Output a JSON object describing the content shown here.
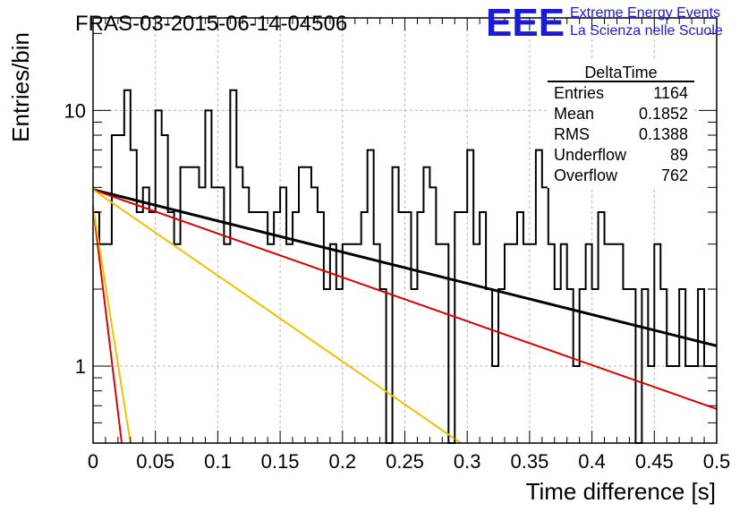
{
  "chart_data": {
    "type": "line",
    "title": "FRAS-03-2015-06-14-04506",
    "xlabel": "Time difference [s]",
    "ylabel": "Entries/bin",
    "xlim": [
      0,
      0.5
    ],
    "ylim": [
      0.5,
      23
    ],
    "ylog": true,
    "grid": true,
    "x_ticks": [
      "0",
      "0.05",
      "0.1",
      "0.15",
      "0.2",
      "0.25",
      "0.3",
      "0.35",
      "0.4",
      "0.45",
      "0.5"
    ],
    "y_ticks": [
      "1",
      "10"
    ],
    "legend_position": "top-right",
    "histogram": {
      "bin_width": 0.005,
      "counts": [
        4,
        3,
        3,
        8,
        8,
        12,
        7,
        4,
        5,
        4,
        10,
        8,
        4,
        3,
        6,
        6,
        6,
        5,
        10,
        5,
        5,
        3,
        12,
        6,
        5,
        4,
        4,
        4,
        3,
        4,
        5,
        3,
        4,
        6,
        6,
        5,
        4,
        2,
        3,
        2,
        3,
        3,
        3,
        4,
        7,
        3,
        2,
        0,
        6,
        4,
        4,
        2,
        4,
        6,
        5,
        3,
        3,
        0,
        4,
        4,
        7,
        3,
        4,
        2,
        1,
        2,
        3,
        3,
        4,
        3,
        3,
        7,
        5,
        3,
        2,
        3,
        2,
        1,
        2,
        3,
        2,
        4,
        3,
        3,
        3,
        2,
        2,
        0,
        2,
        1,
        3,
        2,
        1,
        1,
        2,
        1,
        1,
        2,
        1,
        1
      ]
    },
    "series": [
      {
        "type": "exponential",
        "color": "#000000",
        "x": [
          0,
          0.5
        ],
        "y": [
          4.9,
          1.2
        ]
      },
      {
        "type": "exponential",
        "color": "#dd0000",
        "x": [
          0,
          0.5
        ],
        "y": [
          4.9,
          0.68
        ]
      },
      {
        "type": "exponential",
        "color": "#f0c000",
        "x": [
          0,
          0.295
        ],
        "y": [
          4.9,
          0.5
        ]
      },
      {
        "type": "exponential",
        "color": "#dd0000",
        "x": [
          0,
          0.023
        ],
        "y": [
          4.2,
          0.5
        ]
      },
      {
        "type": "exponential",
        "color": "#f0c000",
        "x": [
          0,
          0.03
        ],
        "y": [
          4.2,
          0.5
        ]
      }
    ],
    "stats_box": {
      "title": "DeltaTime",
      "rows": [
        {
          "label": "Entries",
          "value": "1164"
        },
        {
          "label": "Mean",
          "value": "0.1852"
        },
        {
          "label": "RMS",
          "value": "0.1388"
        },
        {
          "label": "Underflow",
          "value": "89"
        },
        {
          "label": "Overflow",
          "value": "762"
        }
      ]
    }
  },
  "logo": {
    "mark": "EEE",
    "line1": "Extreme Energy Events",
    "line2": "La Scienza nelle Scuole"
  }
}
